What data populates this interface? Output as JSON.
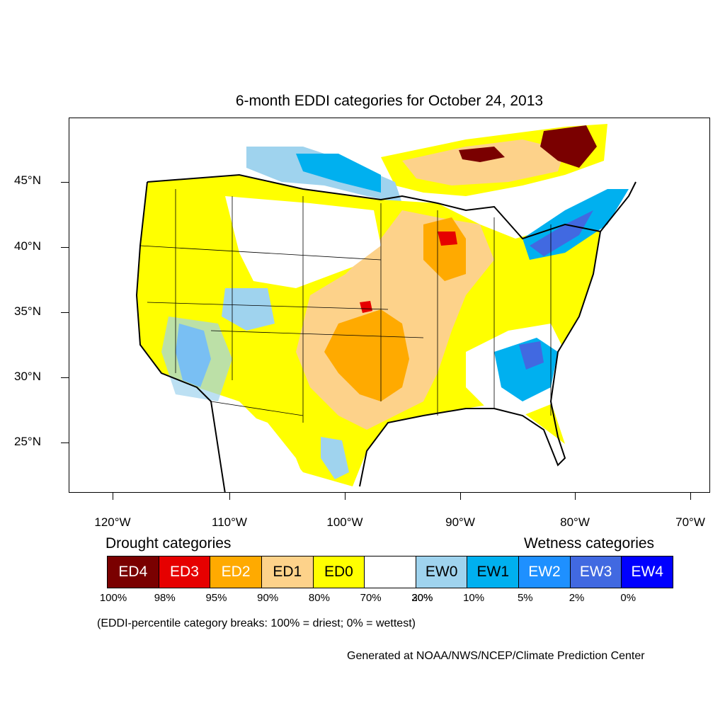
{
  "title": "6-month EDDI categories for October 24, 2013",
  "y_axis_labels": [
    "45°N",
    "40°N",
    "35°N",
    "30°N",
    "25°N"
  ],
  "x_axis_labels": [
    "120°W",
    "110°W",
    "100°W",
    "90°W",
    "80°W",
    "70°W"
  ],
  "legend": {
    "drought_heading": "Drought categories",
    "wetness_heading": "Wetness categories",
    "categories": [
      {
        "label": "ED4",
        "color": "#7a0000",
        "text_color": "#ffffff"
      },
      {
        "label": "ED3",
        "color": "#e60000",
        "text_color": "#ffffff"
      },
      {
        "label": "ED2",
        "color": "#ffaa00",
        "text_color": "#ffffff"
      },
      {
        "label": "ED1",
        "color": "#fdd28a",
        "text_color": "#000000"
      },
      {
        "label": "ED0",
        "color": "#ffff00",
        "text_color": "#000000"
      },
      {
        "label": "",
        "color": "#ffffff",
        "text_color": "#000000"
      },
      {
        "label": "EW0",
        "color": "#9fd3ee",
        "text_color": "#000000"
      },
      {
        "label": "EW1",
        "color": "#00b0ef",
        "text_color": "#000000"
      },
      {
        "label": "EW2",
        "color": "#1e90ff",
        "text_color": "#ffffff"
      },
      {
        "label": "EW3",
        "color": "#4169e1",
        "text_color": "#ffffff"
      },
      {
        "label": "EW4",
        "color": "#0000ff",
        "text_color": "#ffffff"
      }
    ],
    "percent_breaks": [
      "100%",
      "98%",
      "95%",
      "90%",
      "80%",
      "70%",
      "30%",
      "20%",
      "10%",
      "5%",
      "2%",
      "0%"
    ]
  },
  "note": "(EDDI-percentile category breaks: 100% = driest; 0% = wettest)",
  "credit": "Generated at NOAA/NWS/NCEP/Climate Prediction Center"
}
